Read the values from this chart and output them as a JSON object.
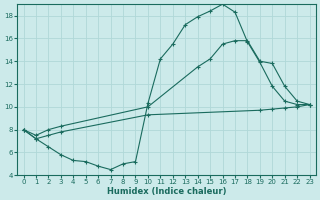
{
  "xlabel": "Humidex (Indice chaleur)",
  "bg_color": "#cceaea",
  "line_color": "#1a6b5e",
  "grid_color": "#b0d8d8",
  "xlim": [
    -0.5,
    23.5
  ],
  "ylim": [
    4,
    19
  ],
  "xticks": [
    0,
    1,
    2,
    3,
    4,
    5,
    6,
    7,
    8,
    9,
    10,
    11,
    12,
    13,
    14,
    15,
    16,
    17,
    18,
    19,
    20,
    21,
    22,
    23
  ],
  "yticks": [
    4,
    6,
    8,
    10,
    12,
    14,
    16,
    18
  ],
  "line1_x": [
    0,
    1,
    2,
    3,
    4,
    5,
    6,
    7,
    8,
    9,
    10,
    11,
    12,
    13,
    14,
    15,
    16,
    17,
    18,
    19,
    20,
    21,
    22,
    23
  ],
  "line1_y": [
    8.0,
    7.2,
    6.5,
    5.8,
    5.3,
    5.2,
    4.8,
    4.5,
    5.0,
    5.2,
    10.3,
    14.2,
    15.5,
    17.2,
    17.9,
    18.4,
    19.0,
    18.3,
    15.7,
    13.9,
    11.8,
    10.5,
    10.2,
    10.2
  ],
  "line2_x": [
    0,
    1,
    2,
    3,
    10,
    19,
    20,
    21,
    22,
    23
  ],
  "line2_y": [
    8.0,
    7.2,
    7.5,
    7.8,
    9.3,
    9.7,
    9.8,
    9.9,
    10.0,
    10.2
  ],
  "line3_x": [
    0,
    1,
    2,
    3,
    10,
    14,
    15,
    16,
    17,
    18,
    19,
    20,
    21,
    22,
    23
  ],
  "line3_y": [
    8.0,
    7.5,
    8.0,
    8.3,
    10.0,
    13.5,
    14.2,
    15.5,
    15.8,
    15.8,
    14.0,
    13.8,
    11.8,
    10.5,
    10.2
  ]
}
